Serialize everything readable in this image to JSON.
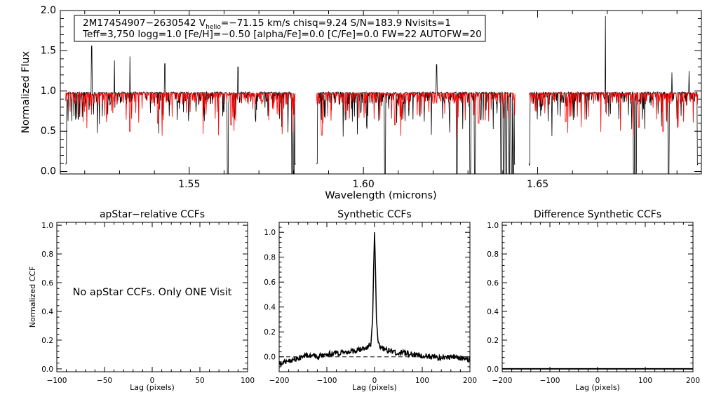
{
  "chart_data": [
    {
      "type": "line",
      "id": "spectrum",
      "title": "",
      "xlabel": "Wavelength (microns)",
      "ylabel": "Normalized Flux",
      "xlim": [
        1.513,
        1.697
      ],
      "ylim": [
        -0.03,
        2.0
      ],
      "xticks": [
        1.55,
        1.6,
        1.65
      ],
      "xtick_labels": [
        "1.55",
        "1.60",
        "1.65"
      ],
      "yticks": [
        0.0,
        0.5,
        1.0,
        1.5,
        2.0
      ],
      "ytick_labels": [
        "0.0",
        "0.5",
        "1.0",
        "1.5",
        "2.0"
      ],
      "info_box": {
        "line1_pre": "2M17454907−2630542  V",
        "line1_sub": "helio",
        "line1_post": "=−71.15 km/s  chisq=9.24  S/N=183.9  Nvisits=1",
        "line2": "Teff=3,750 logg=1.0 [Fe/H]=−0.50 [alpha/Fe]=0.0 [C/Fe]=0.0 FW=22 AUTOFW=20"
      },
      "detector_segments": [
        [
          1.5145,
          1.5805
        ],
        [
          1.5865,
          1.6435
        ],
        [
          1.6475,
          1.696
        ]
      ],
      "series": [
        {
          "name": "Observed spectrum",
          "color": "#000000",
          "continuum": 0.98,
          "noise": 0.05,
          "deep_lines": [
            1.561,
            1.5795,
            1.58,
            1.6062,
            1.6268,
            1.6306,
            1.632,
            1.6395,
            1.6402,
            1.641,
            1.6418,
            1.6425,
            1.643,
            1.6776,
            1.6782,
            1.6876
          ],
          "emission_spikes": [
            [
              1.522,
              1.56
            ],
            [
              1.5285,
              1.38
            ],
            [
              1.533,
              1.43
            ],
            [
              1.543,
              1.34
            ],
            [
              1.564,
              1.3
            ],
            [
              1.621,
              1.33
            ],
            [
              1.6695,
              1.93
            ],
            [
              1.6885,
              1.23
            ],
            [
              1.6935,
              1.25
            ]
          ]
        },
        {
          "name": "Model spectrum",
          "color": "#ff0000",
          "continuum": 0.97,
          "noise": 0.055,
          "absorption_features": [
            [
              1.533,
              0.5
            ],
            [
              1.541,
              0.6
            ],
            [
              1.562,
              0.58
            ],
            [
              1.588,
              0.45
            ],
            [
              1.609,
              0.58
            ],
            [
              1.633,
              0.6
            ],
            [
              1.658,
              0.62
            ],
            [
              1.679,
              0.55
            ],
            [
              1.686,
              0.5
            ]
          ]
        }
      ]
    },
    {
      "type": "line",
      "id": "apstar_ccf",
      "title": "apStar−relative CCFs",
      "xlabel": "Lag (pixels)",
      "ylabel": "Normalized CCF",
      "xlim": [
        -100,
        100
      ],
      "ylim": [
        -0.02,
        1.02
      ],
      "xticks": [
        -100,
        -50,
        0,
        50,
        100
      ],
      "xtick_labels": [
        "−100",
        "−50",
        "0",
        "50",
        "100"
      ],
      "yticks": [
        0.0,
        0.2,
        0.4,
        0.6,
        0.8,
        1.0
      ],
      "ytick_labels": [
        "0.0",
        "0.2",
        "0.4",
        "0.6",
        "0.8",
        "1.0"
      ],
      "annotation": "No apStar CCFs.  Only ONE Visit",
      "series": []
    },
    {
      "type": "line",
      "id": "synthetic_ccf",
      "title": "Synthetic CCFs",
      "xlabel": "Lag (pixels)",
      "ylabel": "",
      "xlim": [
        -200,
        200
      ],
      "ylim": [
        -0.12,
        1.08
      ],
      "xticks": [
        -200,
        -100,
        0,
        100,
        200
      ],
      "xtick_labels": [
        "−200",
        "−100",
        "0",
        "100",
        "200"
      ],
      "yticks": [
        0.0,
        0.2,
        0.4,
        0.6,
        0.8,
        1.0
      ],
      "ytick_labels": [
        "0.0",
        "0.2",
        "0.4",
        "0.6",
        "0.8",
        "1.0"
      ],
      "series": [
        {
          "name": "CCF",
          "color": "#000000",
          "peak_lag": 0,
          "peak_value": 1.0,
          "points": [
            [
              -200,
              -0.06
            ],
            [
              -180,
              -0.03
            ],
            [
              -160,
              -0.01
            ],
            [
              -140,
              0.01
            ],
            [
              -120,
              0.0
            ],
            [
              -100,
              0.02
            ],
            [
              -80,
              0.03
            ],
            [
              -60,
              0.04
            ],
            [
              -40,
              0.05
            ],
            [
              -20,
              0.07
            ],
            [
              -8,
              0.1
            ],
            [
              -4,
              0.3
            ],
            [
              -2,
              0.7
            ],
            [
              0,
              1.0
            ],
            [
              2,
              0.7
            ],
            [
              4,
              0.3
            ],
            [
              8,
              0.1
            ],
            [
              20,
              0.06
            ],
            [
              40,
              0.04
            ],
            [
              60,
              0.03
            ],
            [
              80,
              0.02
            ],
            [
              100,
              0.01
            ],
            [
              120,
              0.0
            ],
            [
              140,
              -0.01
            ],
            [
              160,
              0.0
            ],
            [
              180,
              -0.01
            ],
            [
              200,
              -0.02
            ]
          ]
        },
        {
          "name": "zero level",
          "color": "#000000",
          "style": "dashed",
          "value": 0.0
        }
      ]
    },
    {
      "type": "line",
      "id": "diff_ccf",
      "title": "Difference Synthetic CCFs",
      "xlabel": "Lag (pixels)",
      "ylabel": "",
      "xlim": [
        -200,
        200
      ],
      "ylim": [
        -0.02,
        1.02
      ],
      "xticks": [
        -200,
        -100,
        0,
        100,
        200
      ],
      "xtick_labels": [
        "−200",
        "−100",
        "0",
        "100",
        "200"
      ],
      "yticks": [
        0.0,
        0.2,
        0.4,
        0.6,
        0.8,
        1.0
      ],
      "ytick_labels": [
        "0.0",
        "0.2",
        "0.4",
        "0.6",
        "0.8",
        "1.0"
      ],
      "series": [
        {
          "name": "difference CCF",
          "color": "#000000",
          "value": 0.0
        }
      ]
    }
  ]
}
